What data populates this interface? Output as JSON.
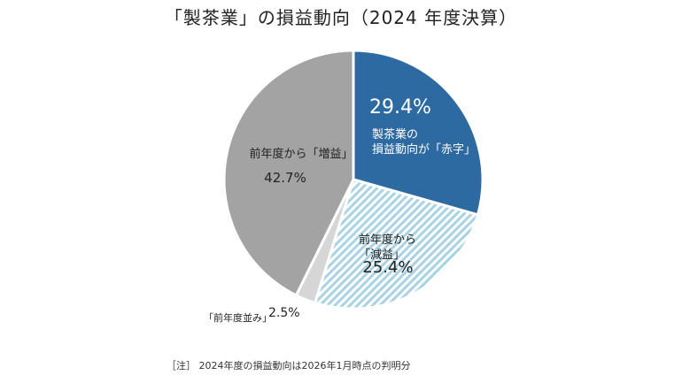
{
  "chart_data": {
    "type": "pie",
    "title": "「製茶業」の損益動向（2024 年度決算）",
    "start_angle_deg": 0,
    "direction": "clockwise",
    "slices": [
      {
        "key": "deficit",
        "value": 29.4,
        "value_label": "29.4%",
        "label_lines": [
          "製茶業の",
          "損益動向が「赤字」"
        ],
        "color": "#2e6aa2",
        "pattern": "solid"
      },
      {
        "key": "decrease",
        "value": 25.4,
        "value_label": "25.4%",
        "label_lines": [
          "前年度から",
          "「減益」"
        ],
        "color": "#a9d3e2",
        "pattern": "diagonal-stripes"
      },
      {
        "key": "flat",
        "value": 2.5,
        "value_label": "2.5%",
        "label_lines": [
          "「前年度並み」"
        ],
        "color": "#d6d6d6",
        "pattern": "solid"
      },
      {
        "key": "increase",
        "value": 42.7,
        "value_label": "42.7%",
        "label_lines": [
          "前年度から「増益」"
        ],
        "color": "#a3a3a3",
        "pattern": "solid"
      }
    ]
  },
  "note": "［注］ 2024年度の損益動向は2026年1月時点の判明分"
}
